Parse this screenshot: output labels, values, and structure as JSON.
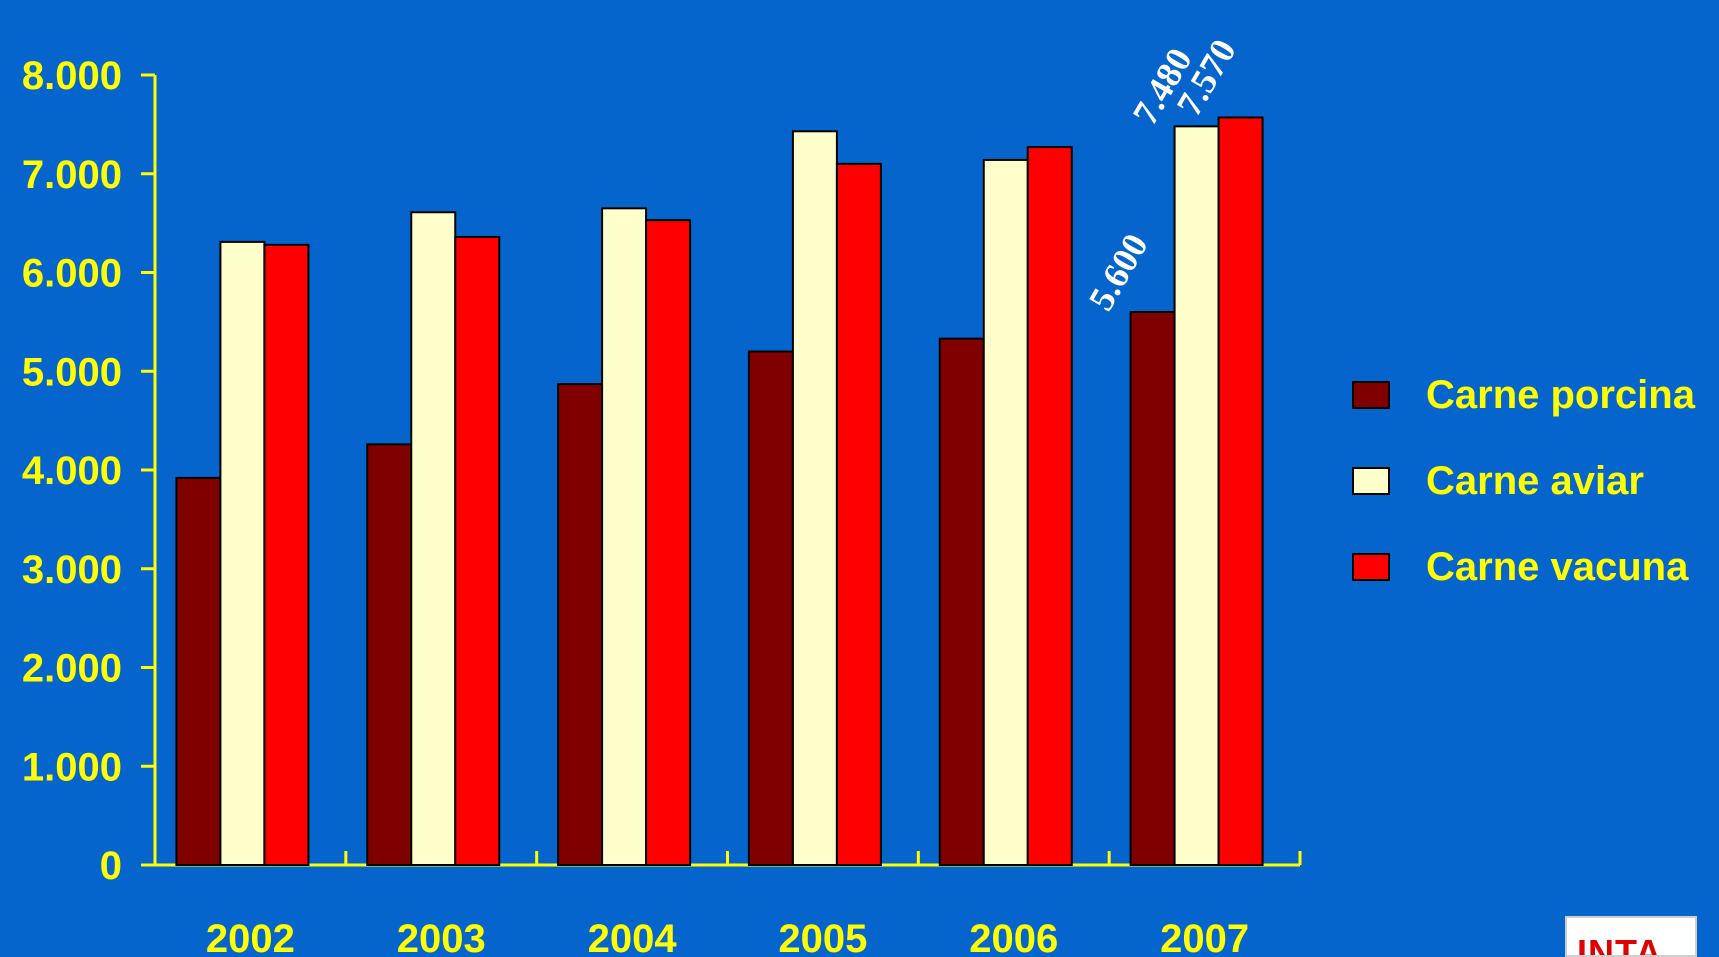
{
  "chart_data": {
    "type": "bar",
    "title": "",
    "xlabel": "",
    "ylabel": "",
    "ylim": [
      0,
      8000
    ],
    "yticks": [
      "0",
      "1.000",
      "2.000",
      "3.000",
      "4.000",
      "5.000",
      "6.000",
      "7.000",
      "8.000"
    ],
    "categories": [
      "2002",
      "2003",
      "2004",
      "2005",
      "2006",
      "2007"
    ],
    "series": [
      {
        "name": "Carne porcina",
        "color": "#800000",
        "values": [
          3920,
          4260,
          4870,
          5200,
          5330,
          5600
        ]
      },
      {
        "name": "Carne aviar",
        "color": "#ffffcc",
        "values": [
          6310,
          6610,
          6650,
          7430,
          7140,
          7480
        ]
      },
      {
        "name": "Carne vacuna",
        "color": "#ff0000",
        "values": [
          6280,
          6360,
          6530,
          7100,
          7270,
          7570
        ]
      }
    ],
    "annotations": [
      {
        "category": "2007",
        "series": "Carne porcina",
        "label": "5.600"
      },
      {
        "category": "2007",
        "series": "Carne aviar",
        "label": "7.480"
      },
      {
        "category": "2007",
        "series": "Carne vacuna",
        "label": "7.570"
      }
    ],
    "grid": false,
    "legend_position": "right"
  },
  "colors": {
    "background": "#0565cd",
    "axis": "#ffff00",
    "tick_text": "#ffff00",
    "annotation_text": "#ffffff"
  },
  "logo": {
    "text": "INTA"
  }
}
